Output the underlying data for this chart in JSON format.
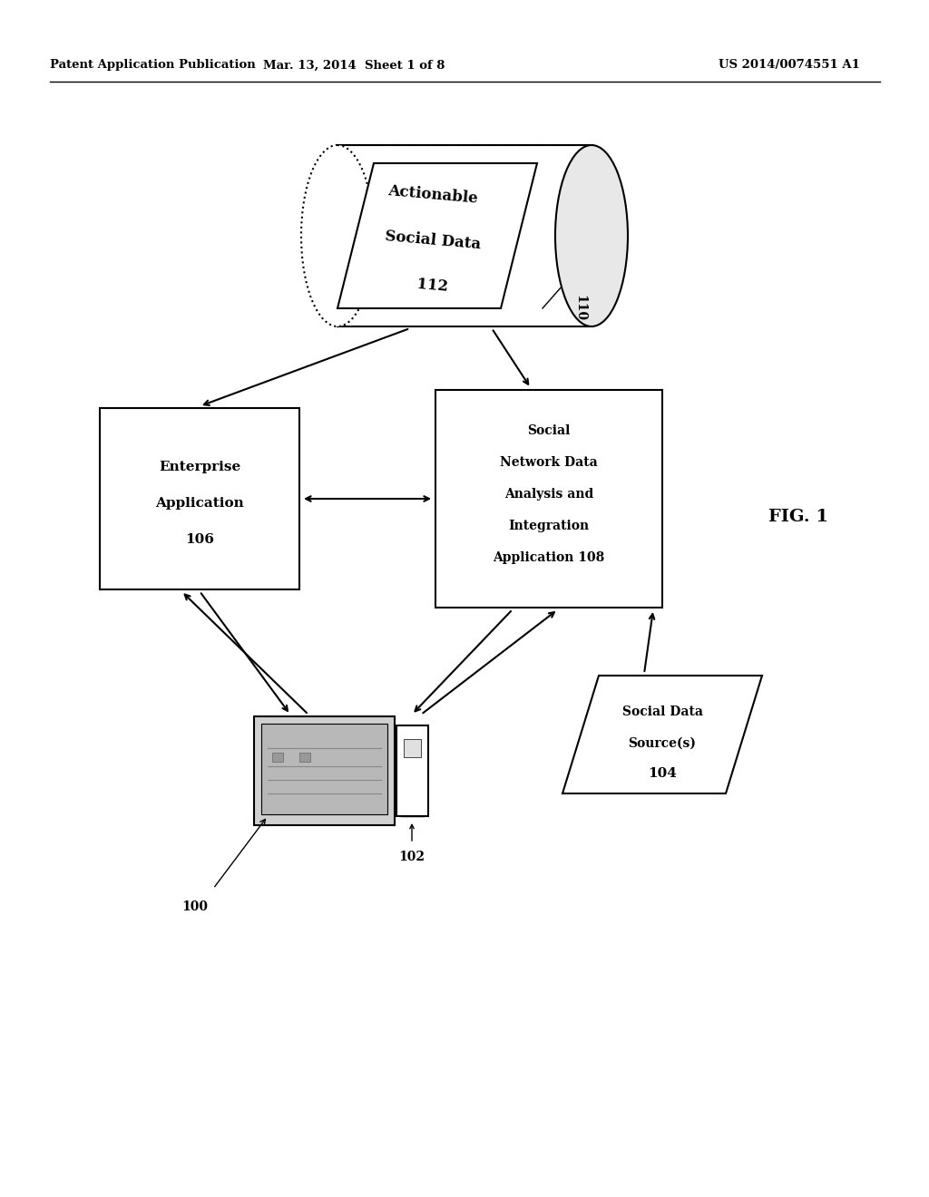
{
  "header_left": "Patent Application Publication",
  "header_mid": "Mar. 13, 2014  Sheet 1 of 8",
  "header_right": "US 2014/0074551 A1",
  "fig_label": "FIG. 1",
  "db_label1": "Actionable",
  "db_label2": "Social Data",
  "db_label3": "112",
  "db_id": "110",
  "ent_label1": "Enterprise",
  "ent_label2": "Application",
  "ent_label3": "106",
  "social_label1": "Social",
  "social_label2": "Network Data",
  "social_label3": "Analysis and",
  "social_label4": "Integration",
  "social_label5": "Application 108",
  "monitor_id": "102",
  "ref_100": "100",
  "source_label1": "Social Data",
  "source_label2": "Source(s)",
  "source_label3": "104",
  "bg_color": "#ffffff",
  "line_color": "#000000"
}
